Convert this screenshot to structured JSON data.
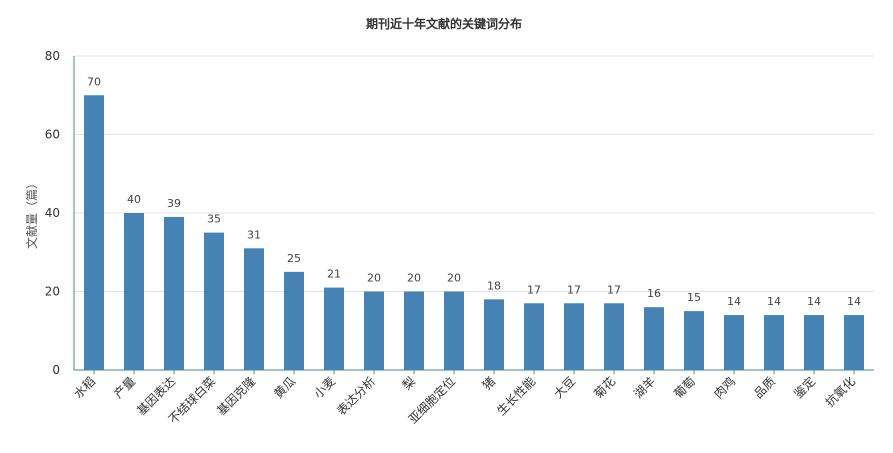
{
  "chart_data": {
    "type": "bar",
    "title": "期刊近十年文献的关键词分布",
    "xlabel": "",
    "ylabel": "文献量（篇）",
    "ylim": [
      0,
      80
    ],
    "yticks": [
      0,
      20,
      40,
      60,
      80
    ],
    "grid": true,
    "bar_color": "#4682b4",
    "categories": [
      "水稻",
      "产量",
      "基因表达",
      "不结球白菜",
      "基因克隆",
      "黄瓜",
      "小麦",
      "表达分析",
      "梨",
      "亚细胞定位",
      "猪",
      "生长性能",
      "大豆",
      "菊花",
      "湖羊",
      "葡萄",
      "肉鸡",
      "品质",
      "鉴定",
      "抗氧化"
    ],
    "values": [
      70,
      40,
      39,
      35,
      31,
      25,
      21,
      20,
      20,
      20,
      18,
      17,
      17,
      17,
      16,
      15,
      14,
      14,
      14,
      14
    ]
  }
}
